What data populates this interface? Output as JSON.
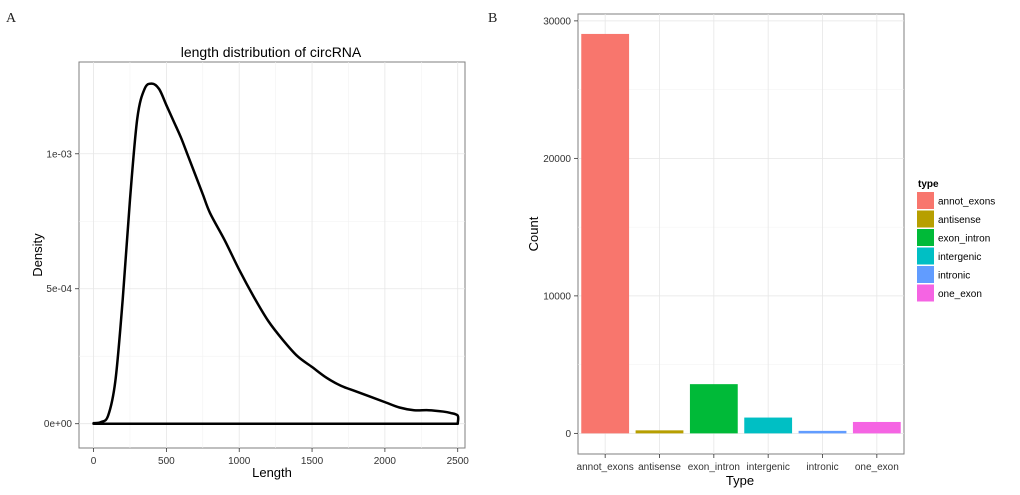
{
  "panel_a": {
    "letter": "A",
    "chart_data": {
      "type": "line",
      "title": "length distribution of circRNA",
      "xlabel": "Length",
      "ylabel": "Density",
      "xlim": [
        -100,
        2550
      ],
      "ylim": [
        -9e-05,
        0.00134
      ],
      "x_ticks": [
        0,
        500,
        1000,
        1500,
        2000,
        2500
      ],
      "x_tick_labels": [
        "0",
        "500",
        "1000",
        "1500",
        "2000",
        "2500"
      ],
      "y_ticks": [
        0,
        0.0005,
        0.001
      ],
      "y_tick_labels": [
        "0e+00",
        "5e-04",
        "1e-03"
      ],
      "x": [
        0,
        50,
        100,
        150,
        200,
        250,
        300,
        350,
        400,
        450,
        500,
        550,
        600,
        650,
        700,
        750,
        800,
        900,
        1000,
        1100,
        1200,
        1300,
        1400,
        1500,
        1600,
        1700,
        1800,
        1900,
        2000,
        2100,
        2200,
        2300,
        2400,
        2450,
        2500,
        2500
      ],
      "density": [
        2e-06,
        6e-06,
        3e-05,
        0.00016,
        0.00046,
        0.00083,
        0.00113,
        0.00124,
        0.00126,
        0.00124,
        0.00118,
        0.00112,
        0.00106,
        0.00099,
        0.00092,
        0.00085,
        0.00078,
        0.00068,
        0.00057,
        0.00047,
        0.00038,
        0.00031,
        0.00025,
        0.00021,
        0.00017,
        0.00014,
        0.00012,
        0.0001,
        8e-05,
        6e-05,
        5e-05,
        5e-05,
        4.5e-05,
        4e-05,
        3e-05,
        0.0
      ],
      "grid": true
    }
  },
  "panel_b": {
    "letter": "B",
    "chart_data": {
      "type": "bar",
      "xlabel": "Type",
      "ylabel": "Count",
      "categories": [
        "annot_exons",
        "antisense",
        "exon_intron",
        "intergenic",
        "intronic",
        "one_exon"
      ],
      "values": [
        29050,
        220,
        3580,
        1150,
        180,
        830
      ],
      "colors": [
        "#F8766D",
        "#B79F00",
        "#00BA38",
        "#00BFC4",
        "#619CFF",
        "#F564E3"
      ],
      "ylim": [
        -1500,
        30500
      ],
      "y_ticks": [
        0,
        10000,
        20000,
        30000
      ],
      "y_tick_labels": [
        "0",
        "10000",
        "20000",
        "30000"
      ],
      "legend_title": "type",
      "legend_position": "right",
      "grid": true
    }
  }
}
